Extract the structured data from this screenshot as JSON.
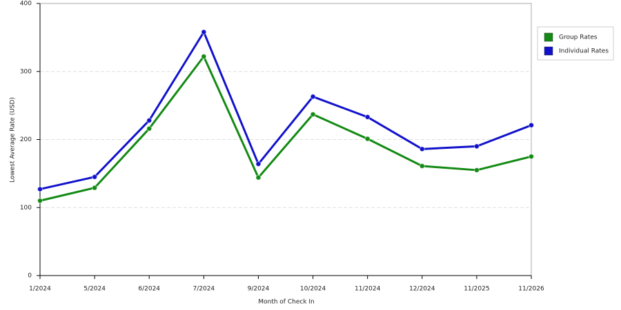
{
  "chart_data": {
    "type": "line",
    "x_label": "Month of Check In",
    "y_label": "Lowest Average Rate (USD)",
    "categories": [
      "1/2024",
      "5/2024",
      "6/2024",
      "7/2024",
      "9/2024",
      "10/2024",
      "11/2024",
      "12/2024",
      "11/2025",
      "11/2026"
    ],
    "series": [
      {
        "name": "Group Rates",
        "color": "#138a13",
        "values": [
          110,
          129,
          216,
          322,
          144,
          237,
          201,
          161,
          155,
          175
        ]
      },
      {
        "name": "Individual Rates",
        "color": "#1111cc",
        "values": [
          127,
          145,
          228,
          358,
          164,
          263,
          233,
          186,
          190,
          221
        ]
      }
    ],
    "ylim": [
      0,
      400
    ],
    "yticks": [
      0,
      100,
      200,
      300,
      400
    ],
    "grid": true,
    "legend": "right"
  }
}
